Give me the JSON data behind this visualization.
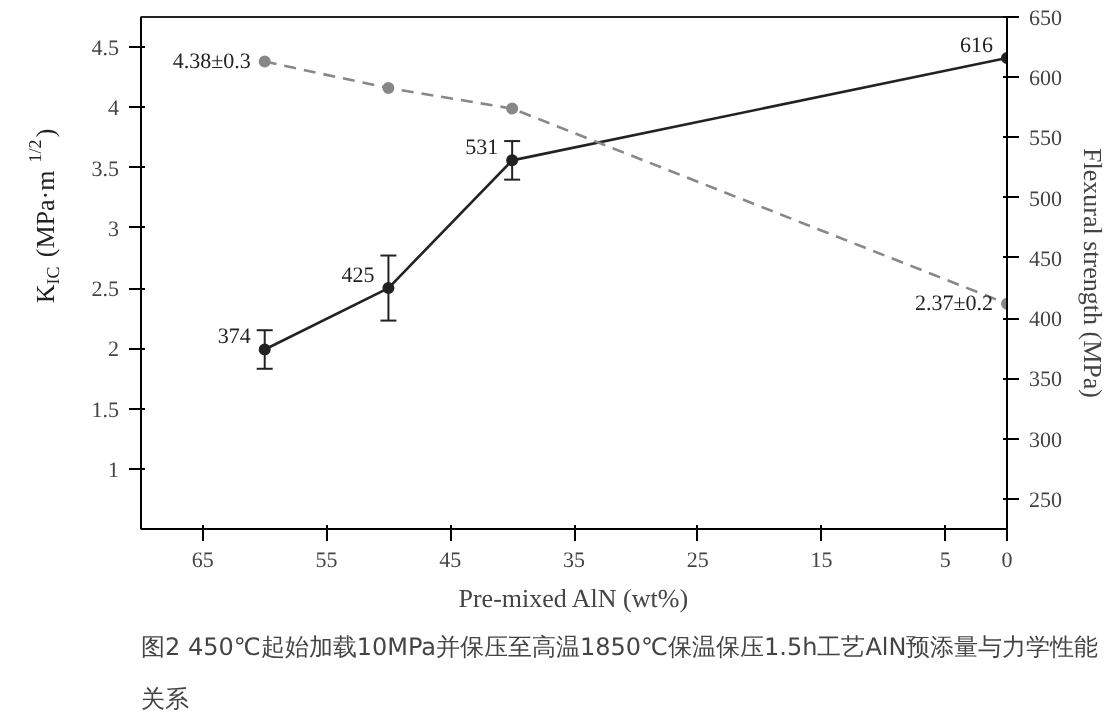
{
  "chart_data": {
    "type": "line",
    "xlabel": "Pre-mixed AlN (wt%)",
    "ylabel": "K$_{IC}$ (MPa·m$^{1/2}$)",
    "y2label": "Flexural strength (MPa)",
    "x": [
      60,
      50,
      40,
      0
    ],
    "xlim": [
      70,
      0
    ],
    "xticks": [
      0,
      5,
      15,
      25,
      35,
      45,
      55,
      65
    ],
    "ylim": [
      0.5,
      4.75
    ],
    "yticks": [
      1.0,
      1.5,
      2.0,
      2.5,
      3.0,
      3.5,
      4.0,
      4.5
    ],
    "y2lim": [
      225,
      650
    ],
    "y2ticks": [
      250,
      300,
      350,
      400,
      450,
      500,
      550,
      600,
      650
    ],
    "marker": "circle",
    "grid": false,
    "series": [
      {
        "color": "#222222",
        "axis": "y2",
        "line_style": "solid",
        "values": [
          374,
          425,
          531,
          616
        ],
        "errors": [
          16,
          27,
          16,
          null
        ],
        "value_labels": [
          "374",
          "425",
          "531",
          "616"
        ]
      },
      {
        "color": "#888888",
        "axis": "y",
        "line_style": "dashed",
        "values": [
          4.38,
          4.16,
          3.99,
          2.37
        ],
        "value_labels": [
          "4.38±0.3",
          null,
          null,
          "2.37±0.2"
        ]
      }
    ],
    "annotations": [
      "图2 450℃起始加载10MPa并保压至高温1850℃保温保压1.5h工艺AlN预添量与力学性能关系"
    ]
  }
}
